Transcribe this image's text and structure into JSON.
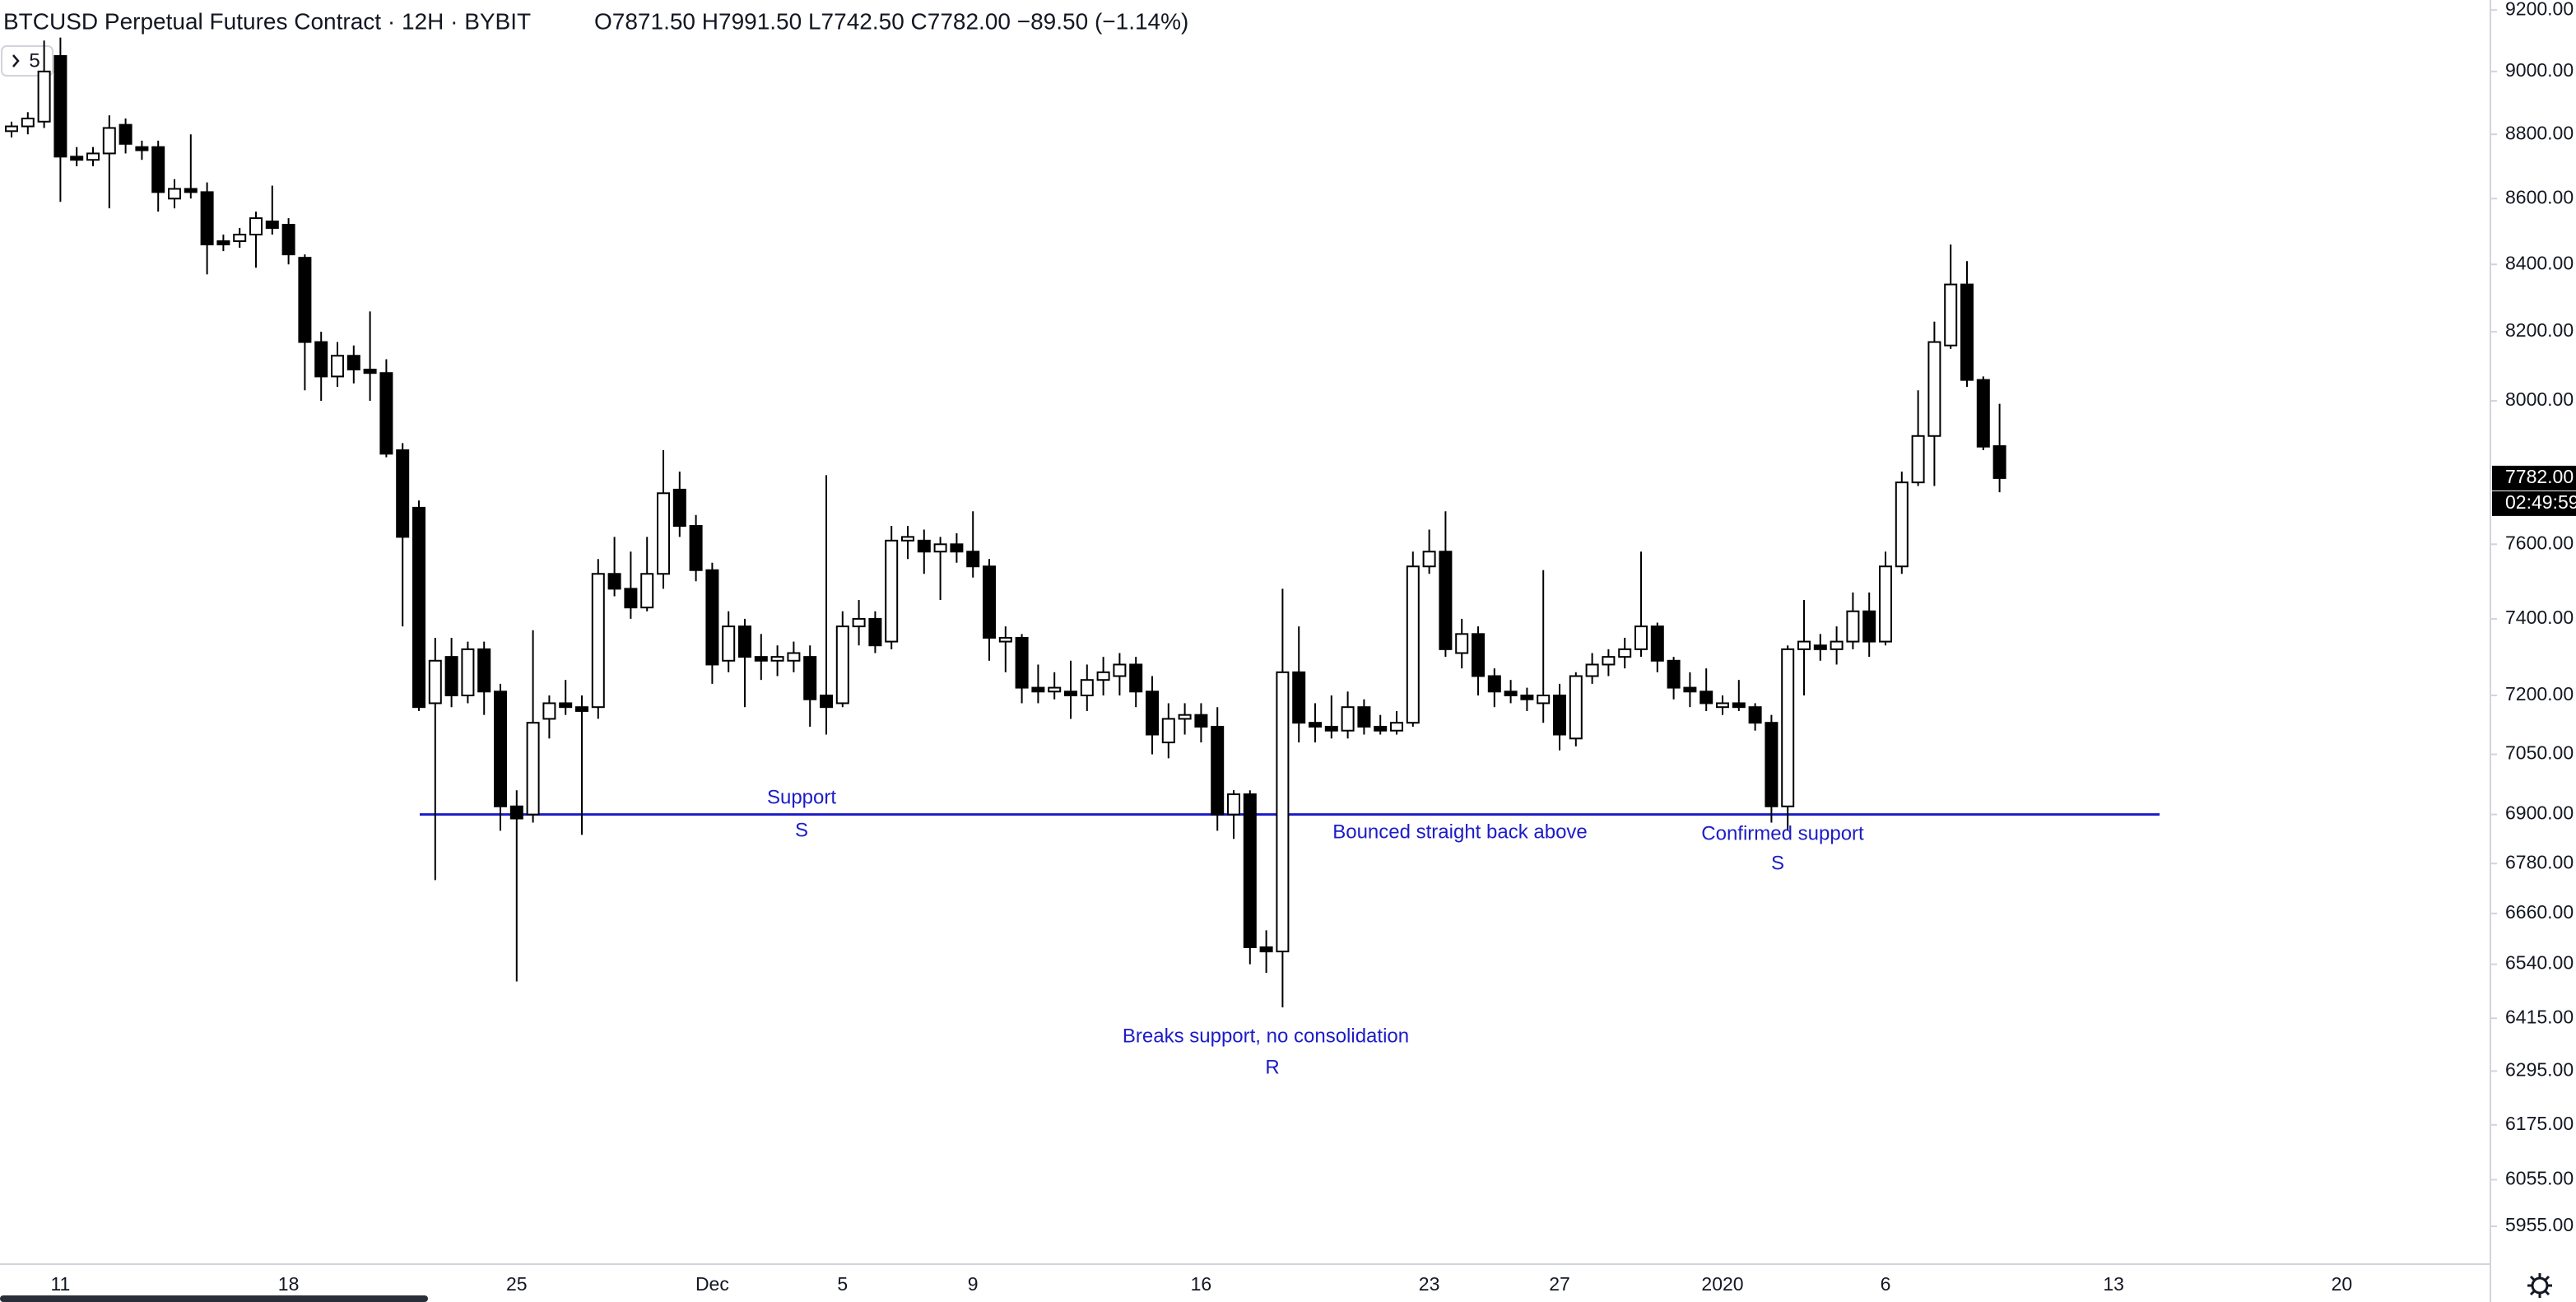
{
  "header": {
    "title": "BTCUSD Perpetual Futures Contract · 12H · BYBIT",
    "ohlc": "O7871.50 H7991.50 L7742.50 C7782.00 −89.50 (−1.14%)",
    "interval_button": "5"
  },
  "chart_data": {
    "type": "candlestick",
    "log_scale": true,
    "grid": false,
    "up_color": "#ffffff",
    "down_color": "#000000",
    "wick_color": "#000000",
    "ylim": [
      5875,
      9233
    ],
    "yticks": [
      {
        "value": 9200,
        "label": "9200.00"
      },
      {
        "value": 9000,
        "label": "9000.00"
      },
      {
        "value": 8800,
        "label": "8800.00"
      },
      {
        "value": 8600,
        "label": "8600.00"
      },
      {
        "value": 8400,
        "label": "8400.00"
      },
      {
        "value": 8200,
        "label": "8200.00"
      },
      {
        "value": 8000,
        "label": "8000.00"
      },
      {
        "value": 7600,
        "label": "7600.00"
      },
      {
        "value": 7400,
        "label": "7400.00"
      },
      {
        "value": 7200,
        "label": "7200.00"
      },
      {
        "value": 7050,
        "label": "7050.00"
      },
      {
        "value": 6900,
        "label": "6900.00"
      },
      {
        "value": 6780,
        "label": "6780.00"
      },
      {
        "value": 6660,
        "label": "6660.00"
      },
      {
        "value": 6540,
        "label": "6540.00"
      },
      {
        "value": 6415,
        "label": "6415.00"
      },
      {
        "value": 6295,
        "label": "6295.00"
      },
      {
        "value": 6175,
        "label": "6175.00"
      },
      {
        "value": 6055,
        "label": "6055.00"
      },
      {
        "value": 5955,
        "label": "5955.00"
      }
    ],
    "categories": [
      null,
      null,
      null,
      "11",
      null,
      null,
      null,
      null,
      null,
      null,
      null,
      null,
      null,
      null,
      null,
      null,
      null,
      "18",
      null,
      null,
      null,
      null,
      null,
      null,
      null,
      null,
      null,
      null,
      null,
      null,
      null,
      "25",
      null,
      null,
      null,
      null,
      null,
      null,
      null,
      null,
      null,
      null,
      null,
      "Dec",
      null,
      null,
      null,
      null,
      null,
      null,
      null,
      "5",
      null,
      null,
      null,
      null,
      null,
      null,
      null,
      "9",
      null,
      null,
      null,
      null,
      null,
      null,
      null,
      null,
      null,
      null,
      null,
      null,
      null,
      "16",
      null,
      null,
      null,
      null,
      null,
      null,
      null,
      null,
      null,
      null,
      null,
      null,
      null,
      "23",
      null,
      null,
      null,
      null,
      null,
      null,
      null,
      "27",
      null,
      null,
      null,
      null,
      null,
      null,
      null,
      null,
      null,
      "2020",
      null,
      null,
      null,
      null,
      null,
      null,
      null,
      null,
      null,
      "6",
      null,
      null,
      null,
      null,
      null,
      null,
      null,
      null,
      null,
      null,
      null,
      null,
      null,
      "13",
      null,
      null,
      null,
      null,
      null,
      null,
      null,
      null,
      null,
      null,
      null,
      null,
      null,
      "20"
    ],
    "open": [
      8810,
      8825,
      8840,
      9050,
      8730,
      8720,
      8740,
      8830,
      8760,
      8760,
      8600,
      8630,
      8620,
      8470,
      8470,
      8490,
      8530,
      8520,
      8420,
      8170,
      8070,
      8130,
      8090,
      8080,
      7860,
      7700,
      7180,
      7300,
      7200,
      7320,
      7210,
      6920,
      6900,
      7140,
      7180,
      7170,
      7170,
      7520,
      7480,
      7430,
      7520,
      7750,
      7650,
      7530,
      7290,
      7380,
      7300,
      7290,
      7290,
      7300,
      7200,
      7180,
      7380,
      7400,
      7340,
      7610,
      7610,
      7580,
      7600,
      7580,
      7540,
      7340,
      7350,
      7220,
      7210,
      7210,
      7200,
      7240,
      7250,
      7280,
      7210,
      7080,
      7140,
      7150,
      7120,
      6900,
      6950,
      6580,
      6570,
      7260,
      7130,
      7120,
      7110,
      7170,
      7120,
      7110,
      7130,
      7540,
      7580,
      7310,
      7360,
      7250,
      7210,
      7200,
      7180,
      7200,
      7090,
      7250,
      7280,
      7300,
      7320,
      7380,
      7290,
      7220,
      7210,
      7170,
      7180,
      7170,
      7130,
      6920,
      7320,
      7330,
      7320,
      7340,
      7420,
      7340,
      7540,
      7770,
      7900,
      8160,
      8340,
      8060,
      7871.5,
      null,
      null,
      null,
      null,
      null,
      null,
      null,
      null,
      null,
      null,
      null,
      null,
      null,
      null,
      null,
      null,
      null,
      null,
      null,
      null,
      null
    ],
    "high": [
      8840,
      8870,
      9100,
      9110,
      8760,
      8760,
      8860,
      8850,
      8780,
      8780,
      8660,
      8800,
      8650,
      8490,
      8510,
      8560,
      8640,
      8540,
      8430,
      8200,
      8170,
      8160,
      8260,
      8120,
      7880,
      7720,
      7350,
      7350,
      7340,
      7340,
      7230,
      6960,
      7370,
      7200,
      7240,
      7200,
      7560,
      7620,
      7580,
      7620,
      7860,
      7800,
      7680,
      7550,
      7420,
      7400,
      7360,
      7330,
      7340,
      7330,
      7790,
      7420,
      7450,
      7420,
      7650,
      7650,
      7640,
      7620,
      7630,
      7690,
      7560,
      7380,
      7360,
      7280,
      7260,
      7290,
      7280,
      7300,
      7310,
      7300,
      7250,
      7180,
      7180,
      7180,
      7170,
      6960,
      6960,
      6620,
      7480,
      7380,
      7180,
      7200,
      7210,
      7190,
      7150,
      7160,
      7580,
      7640,
      7690,
      7400,
      7380,
      7270,
      7240,
      7220,
      7530,
      7230,
      7260,
      7310,
      7320,
      7350,
      7580,
      7390,
      7300,
      7260,
      7270,
      7200,
      7240,
      7180,
      7150,
      7330,
      7450,
      7360,
      7380,
      7470,
      7470,
      7580,
      7800,
      8030,
      8230,
      8460,
      8410,
      8070,
      7991.5,
      null,
      null,
      null,
      null,
      null,
      null,
      null,
      null,
      null,
      null,
      null,
      null,
      null,
      null,
      null,
      null,
      null,
      null,
      null,
      null,
      null
    ],
    "low": [
      8790,
      8800,
      8820,
      8590,
      8700,
      8700,
      8570,
      8740,
      8720,
      8560,
      8570,
      8600,
      8370,
      8440,
      8450,
      8390,
      8490,
      8400,
      8030,
      8000,
      8040,
      8050,
      8000,
      7840,
      7380,
      7160,
      6740,
      7170,
      7180,
      7150,
      6860,
      6500,
      6880,
      7090,
      7150,
      6850,
      7140,
      7460,
      7400,
      7420,
      7480,
      7620,
      7500,
      7230,
      7260,
      7170,
      7240,
      7250,
      7260,
      7120,
      7100,
      7170,
      7330,
      7310,
      7320,
      7560,
      7520,
      7450,
      7550,
      7510,
      7290,
      7260,
      7180,
      7180,
      7190,
      7140,
      7160,
      7200,
      7200,
      7170,
      7050,
      7040,
      7100,
      7080,
      6860,
      6840,
      6540,
      6520,
      6440,
      7080,
      7080,
      7090,
      7090,
      7100,
      7100,
      7100,
      7120,
      7520,
      7300,
      7270,
      7200,
      7170,
      7180,
      7160,
      7130,
      7060,
      7070,
      7230,
      7250,
      7270,
      7300,
      7260,
      7190,
      7170,
      7160,
      7150,
      7160,
      7110,
      6880,
      6860,
      7200,
      7290,
      7280,
      7320,
      7300,
      7330,
      7520,
      7760,
      7760,
      8150,
      8040,
      7860,
      7742.5,
      null,
      null,
      null,
      null,
      null,
      null,
      null,
      null,
      null,
      null,
      null,
      null,
      null,
      null,
      null,
      null,
      null,
      null,
      null,
      null,
      null
    ],
    "close": [
      8825,
      8850,
      9000,
      8730,
      8720,
      8740,
      8820,
      8770,
      8750,
      8620,
      8630,
      8620,
      8460,
      8460,
      8490,
      8540,
      8510,
      8430,
      8170,
      8070,
      8130,
      8090,
      8080,
      7850,
      7620,
      7170,
      7290,
      7200,
      7320,
      7210,
      6920,
      6890,
      7130,
      7180,
      7170,
      7160,
      7520,
      7480,
      7430,
      7520,
      7740,
      7650,
      7530,
      7280,
      7380,
      7300,
      7290,
      7300,
      7310,
      7190,
      7170,
      7380,
      7400,
      7330,
      7610,
      7620,
      7580,
      7600,
      7580,
      7540,
      7350,
      7350,
      7220,
      7210,
      7220,
      7200,
      7240,
      7260,
      7280,
      7210,
      7100,
      7140,
      7150,
      7120,
      6900,
      6950,
      6580,
      6570,
      7260,
      7130,
      7120,
      7110,
      7170,
      7120,
      7110,
      7130,
      7540,
      7580,
      7320,
      7360,
      7250,
      7210,
      7200,
      7190,
      7200,
      7100,
      7250,
      7280,
      7300,
      7320,
      7380,
      7290,
      7220,
      7210,
      7180,
      7180,
      7170,
      7130,
      6920,
      7320,
      7340,
      7320,
      7340,
      7420,
      7340,
      7540,
      7770,
      7900,
      8170,
      8340,
      8060,
      7870,
      7782,
      null,
      null,
      null,
      null,
      null,
      null,
      null,
      null,
      null,
      null,
      null,
      null,
      null,
      null,
      null,
      null,
      null,
      null,
      null,
      null,
      null
    ],
    "price_label": {
      "label": "7782.00",
      "countdown": "02:49:59"
    },
    "hlines": [
      {
        "value": 6900,
        "color": "#1c1cc8"
      }
    ],
    "annotation_color": "#1c1cc8",
    "annotations": [
      "Support",
      "S",
      "Bounced straight back above",
      "Confirmed support",
      "S",
      "Breaks support, no consolidation",
      "R"
    ]
  }
}
